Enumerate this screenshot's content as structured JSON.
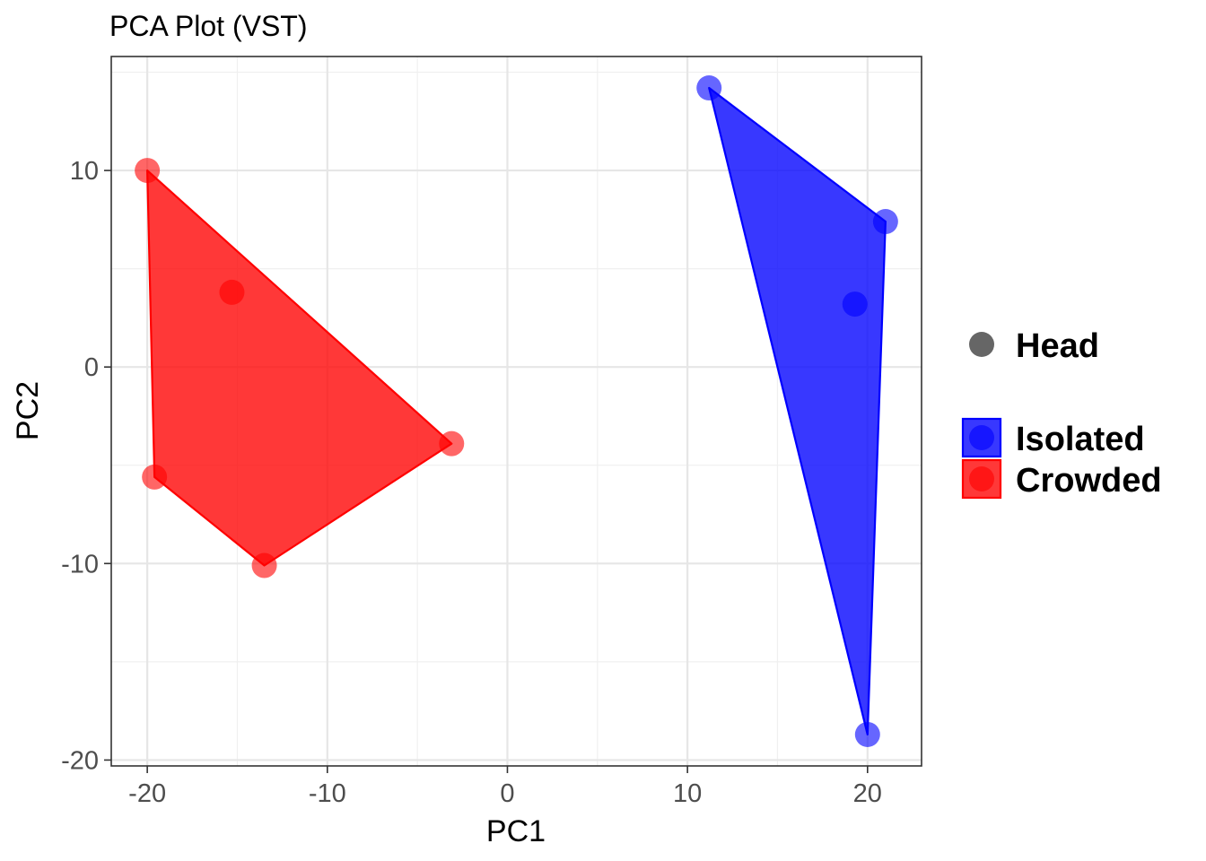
{
  "chart_data": {
    "type": "scatter",
    "title": "PCA Plot (VST)",
    "xlabel": "PC1",
    "ylabel": "PC2",
    "xlim": [
      -22,
      23
    ],
    "ylim": [
      -20.3,
      15.8
    ],
    "x_ticks": [
      -20,
      -10,
      0,
      10,
      20
    ],
    "y_ticks": [
      -20,
      -10,
      0,
      10
    ],
    "x_tick_labels": [
      "-20",
      "-10",
      "0",
      "10",
      "20"
    ],
    "y_tick_labels": [
      "-20",
      "-10",
      "0",
      "10"
    ],
    "grid": true,
    "hulls": true,
    "legend_position": "right",
    "shape_legend": [
      {
        "label": "Head",
        "color": "#666666"
      }
    ],
    "series": [
      {
        "name": "Isolated",
        "color": "#0000ff",
        "points": [
          {
            "x": 11.2,
            "y": 14.2
          },
          {
            "x": 21.0,
            "y": 7.4
          },
          {
            "x": 19.3,
            "y": 3.2
          },
          {
            "x": 20.0,
            "y": -18.7
          }
        ]
      },
      {
        "name": "Crowded",
        "color": "#ff0000",
        "points": [
          {
            "x": -20.0,
            "y": 10.0
          },
          {
            "x": -15.3,
            "y": 3.8
          },
          {
            "x": -3.1,
            "y": -3.9
          },
          {
            "x": -19.6,
            "y": -5.6
          },
          {
            "x": -13.5,
            "y": -10.1
          }
        ]
      }
    ]
  }
}
